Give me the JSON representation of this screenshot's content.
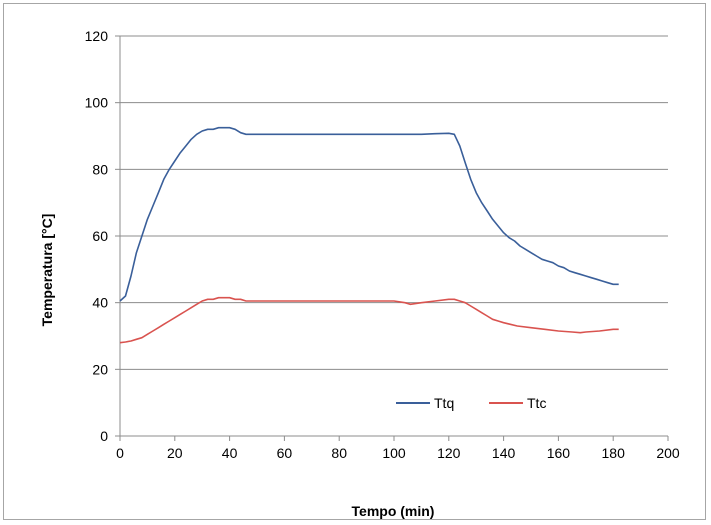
{
  "chart_data": {
    "type": "line",
    "title": "",
    "xlabel": "Tempo (min)",
    "ylabel": "Temperatura [°C]",
    "xlim": [
      0,
      200
    ],
    "ylim": [
      0,
      120
    ],
    "xticks": [
      0,
      20,
      40,
      60,
      80,
      100,
      120,
      140,
      160,
      180,
      200
    ],
    "yticks": [
      0,
      20,
      40,
      60,
      80,
      100,
      120
    ],
    "grid": "horizontal",
    "legend_position": "bottom-right",
    "series": [
      {
        "name": "Ttq",
        "color": "#3a5f9a",
        "x": [
          0,
          2,
          4,
          6,
          8,
          10,
          12,
          14,
          16,
          18,
          20,
          22,
          24,
          26,
          28,
          30,
          32,
          34,
          36,
          38,
          40,
          42,
          44,
          46,
          48,
          50,
          60,
          70,
          80,
          90,
          100,
          110,
          115,
          120,
          122,
          124,
          126,
          128,
          130,
          132,
          134,
          136,
          138,
          140,
          142,
          144,
          146,
          148,
          150,
          152,
          154,
          156,
          158,
          160,
          162,
          164,
          166,
          168,
          170,
          172,
          174,
          176,
          178,
          180,
          182
        ],
        "y": [
          40.5,
          42,
          48,
          55,
          60,
          65,
          69,
          73,
          77,
          80,
          82.5,
          85,
          87,
          89,
          90.5,
          91.5,
          92,
          92,
          92.5,
          92.5,
          92.5,
          92,
          91,
          90.5,
          90.5,
          90.5,
          90.5,
          90.5,
          90.5,
          90.5,
          90.5,
          90.5,
          90.7,
          90.8,
          90.5,
          87,
          82,
          77,
          73,
          70,
          67.5,
          65,
          63,
          61,
          59.5,
          58.5,
          57,
          56,
          55,
          54,
          53,
          52.5,
          52,
          51,
          50.5,
          49.5,
          49,
          48.5,
          48,
          47.5,
          47,
          46.5,
          46,
          45.5,
          45.5
        ]
      },
      {
        "name": "Ttc",
        "color": "#d9534f",
        "x": [
          0,
          2,
          4,
          6,
          8,
          10,
          12,
          14,
          16,
          18,
          20,
          22,
          24,
          26,
          28,
          30,
          32,
          34,
          36,
          38,
          40,
          42,
          44,
          46,
          48,
          50,
          60,
          70,
          80,
          90,
          100,
          104,
          106,
          110,
          115,
          120,
          122,
          124,
          126,
          128,
          130,
          132,
          134,
          136,
          138,
          140,
          145,
          150,
          155,
          160,
          165,
          168,
          170,
          175,
          180,
          182
        ],
        "y": [
          28,
          28.2,
          28.5,
          29,
          29.5,
          30.5,
          31.5,
          32.5,
          33.5,
          34.5,
          35.5,
          36.5,
          37.5,
          38.5,
          39.5,
          40.5,
          41,
          41,
          41.5,
          41.5,
          41.5,
          41,
          41,
          40.5,
          40.5,
          40.5,
          40.5,
          40.5,
          40.5,
          40.5,
          40.5,
          40,
          39.5,
          40,
          40.5,
          41,
          41,
          40.5,
          40,
          39,
          38,
          37,
          36,
          35,
          34.5,
          34,
          33,
          32.5,
          32,
          31.5,
          31.2,
          31,
          31.2,
          31.5,
          32,
          32
        ]
      }
    ]
  }
}
